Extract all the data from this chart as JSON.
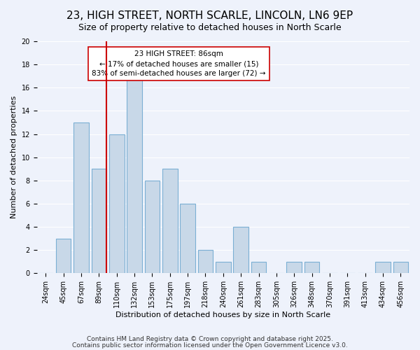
{
  "title": "23, HIGH STREET, NORTH SCARLE, LINCOLN, LN6 9EP",
  "subtitle": "Size of property relative to detached houses in North Scarle",
  "xlabel": "Distribution of detached houses by size in North Scarle",
  "ylabel": "Number of detached properties",
  "bar_color": "#c8d8e8",
  "bar_edge_color": "#7bafd4",
  "background_color": "#eef2fb",
  "grid_color": "#ffffff",
  "categories": [
    "24sqm",
    "45sqm",
    "67sqm",
    "89sqm",
    "110sqm",
    "132sqm",
    "153sqm",
    "175sqm",
    "197sqm",
    "218sqm",
    "240sqm",
    "261sqm",
    "283sqm",
    "305sqm",
    "326sqm",
    "348sqm",
    "370sqm",
    "391sqm",
    "413sqm",
    "434sqm",
    "456sqm"
  ],
  "values": [
    0,
    3,
    13,
    9,
    12,
    17,
    8,
    9,
    6,
    2,
    1,
    4,
    1,
    0,
    1,
    1,
    0,
    0,
    0,
    1,
    1
  ],
  "ylim": [
    0,
    20
  ],
  "yticks": [
    0,
    2,
    4,
    6,
    8,
    10,
    12,
    14,
    16,
    18,
    20
  ],
  "vline_color": "#cc0000",
  "vline_x_index": 3,
  "annotation_title": "23 HIGH STREET: 86sqm",
  "annotation_line1": "← 17% of detached houses are smaller (15)",
  "annotation_line2": "83% of semi-detached houses are larger (72) →",
  "annotation_box_color": "#ffffff",
  "annotation_box_edge": "#cc0000",
  "footer_line1": "Contains HM Land Registry data © Crown copyright and database right 2025.",
  "footer_line2": "Contains public sector information licensed under the Open Government Licence v3.0.",
  "title_fontsize": 11,
  "subtitle_fontsize": 9,
  "label_fontsize": 8,
  "tick_fontsize": 7,
  "annotation_fontsize": 7.5,
  "footer_fontsize": 6.5
}
